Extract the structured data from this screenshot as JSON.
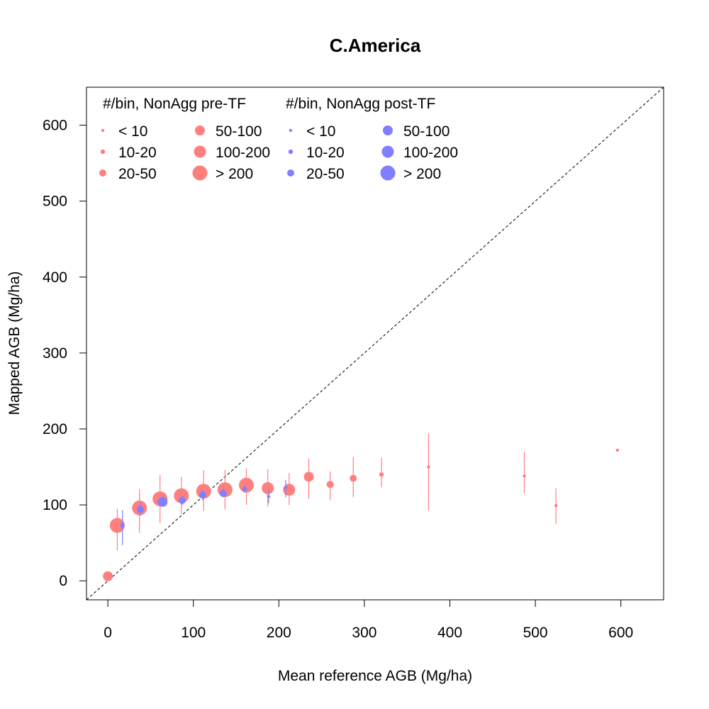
{
  "chart_data": {
    "type": "scatter",
    "title": "C.America",
    "xlabel": "Mean reference AGB (Mg/ha)",
    "ylabel": "Mapped AGB (Mg/ha)",
    "xlim": [
      -25,
      650
    ],
    "ylim": [
      -25,
      650
    ],
    "xticks": [
      0,
      100,
      200,
      300,
      400,
      500,
      600
    ],
    "yticks": [
      0,
      100,
      200,
      300,
      400,
      500,
      600
    ],
    "reference_line": "1:1 dashed",
    "grid": false,
    "legend_position": "top-left",
    "legend": [
      {
        "title": "#/bin, NonAgg pre-TF",
        "color": "#ff7f7f",
        "entries": [
          {
            "label": "< 10",
            "size_class": 0
          },
          {
            "label": "10-20",
            "size_class": 1
          },
          {
            "label": "20-50",
            "size_class": 2
          },
          {
            "label": "50-100",
            "size_class": 3
          },
          {
            "label": "100-200",
            "size_class": 4
          },
          {
            "label": "> 200",
            "size_class": 5
          }
        ]
      },
      {
        "title": "#/bin, NonAgg post-TF",
        "color": "#7f7fff",
        "entries": [
          {
            "label": "< 10",
            "size_class": 0
          },
          {
            "label": "10-20",
            "size_class": 1
          },
          {
            "label": "20-50",
            "size_class": 2
          },
          {
            "label": "50-100",
            "size_class": 3
          },
          {
            "label": "100-200",
            "size_class": 4
          },
          {
            "label": "> 200",
            "size_class": 5
          }
        ]
      }
    ],
    "series": [
      {
        "name": "#/bin, NonAgg pre-TF",
        "color": "#ff7f7f",
        "points": [
          {
            "x": 0,
            "y": 6,
            "lo": 6,
            "hi": 6,
            "size_class": 3
          },
          {
            "x": 11,
            "y": 73,
            "lo": 40,
            "hi": 95,
            "size_class": 5
          },
          {
            "x": 37,
            "y": 96,
            "lo": 63,
            "hi": 121,
            "size_class": 5
          },
          {
            "x": 61,
            "y": 108,
            "lo": 76,
            "hi": 139,
            "size_class": 5
          },
          {
            "x": 86,
            "y": 112,
            "lo": 88,
            "hi": 137,
            "size_class": 5
          },
          {
            "x": 112,
            "y": 118,
            "lo": 92,
            "hi": 146,
            "size_class": 5
          },
          {
            "x": 137,
            "y": 120,
            "lo": 94,
            "hi": 146,
            "size_class": 5
          },
          {
            "x": 162,
            "y": 126,
            "lo": 100,
            "hi": 148,
            "size_class": 5
          },
          {
            "x": 187,
            "y": 122,
            "lo": 98,
            "hi": 147,
            "size_class": 4
          },
          {
            "x": 212,
            "y": 120,
            "lo": 100,
            "hi": 142,
            "size_class": 4
          },
          {
            "x": 235,
            "y": 137,
            "lo": 108,
            "hi": 161,
            "size_class": 3
          },
          {
            "x": 260,
            "y": 127,
            "lo": 106,
            "hi": 144,
            "size_class": 2
          },
          {
            "x": 287,
            "y": 135,
            "lo": 110,
            "hi": 163,
            "size_class": 2
          },
          {
            "x": 320,
            "y": 140,
            "lo": 123,
            "hi": 162,
            "size_class": 1
          },
          {
            "x": 375,
            "y": 150,
            "lo": 93,
            "hi": 194,
            "size_class": 0
          },
          {
            "x": 487,
            "y": 138,
            "lo": 115,
            "hi": 170,
            "size_class": 0
          },
          {
            "x": 524,
            "y": 99,
            "lo": 75,
            "hi": 122,
            "size_class": 0
          },
          {
            "x": 596,
            "y": 172,
            "lo": 172,
            "hi": 172,
            "size_class": 0
          }
        ]
      },
      {
        "name": "#/bin, NonAgg post-TF",
        "color": "#7f7fff",
        "points": [
          {
            "x": 17,
            "y": 73,
            "lo": 47,
            "hi": 93,
            "size_class": 1
          },
          {
            "x": 38,
            "y": 94,
            "lo": 86,
            "hi": 103,
            "size_class": 2
          },
          {
            "x": 64,
            "y": 104,
            "lo": 98,
            "hi": 112,
            "size_class": 3
          },
          {
            "x": 87,
            "y": 106,
            "lo": 100,
            "hi": 112,
            "size_class": 2
          },
          {
            "x": 111,
            "y": 113,
            "lo": 106,
            "hi": 120,
            "size_class": 2
          },
          {
            "x": 135,
            "y": 115,
            "lo": 110,
            "hi": 122,
            "size_class": 2
          },
          {
            "x": 160,
            "y": 121,
            "lo": 116,
            "hi": 126,
            "size_class": 1
          },
          {
            "x": 188,
            "y": 111,
            "lo": 102,
            "hi": 120,
            "size_class": 0
          },
          {
            "x": 208,
            "y": 123,
            "lo": 110,
            "hi": 133,
            "size_class": 0
          }
        ]
      }
    ]
  }
}
